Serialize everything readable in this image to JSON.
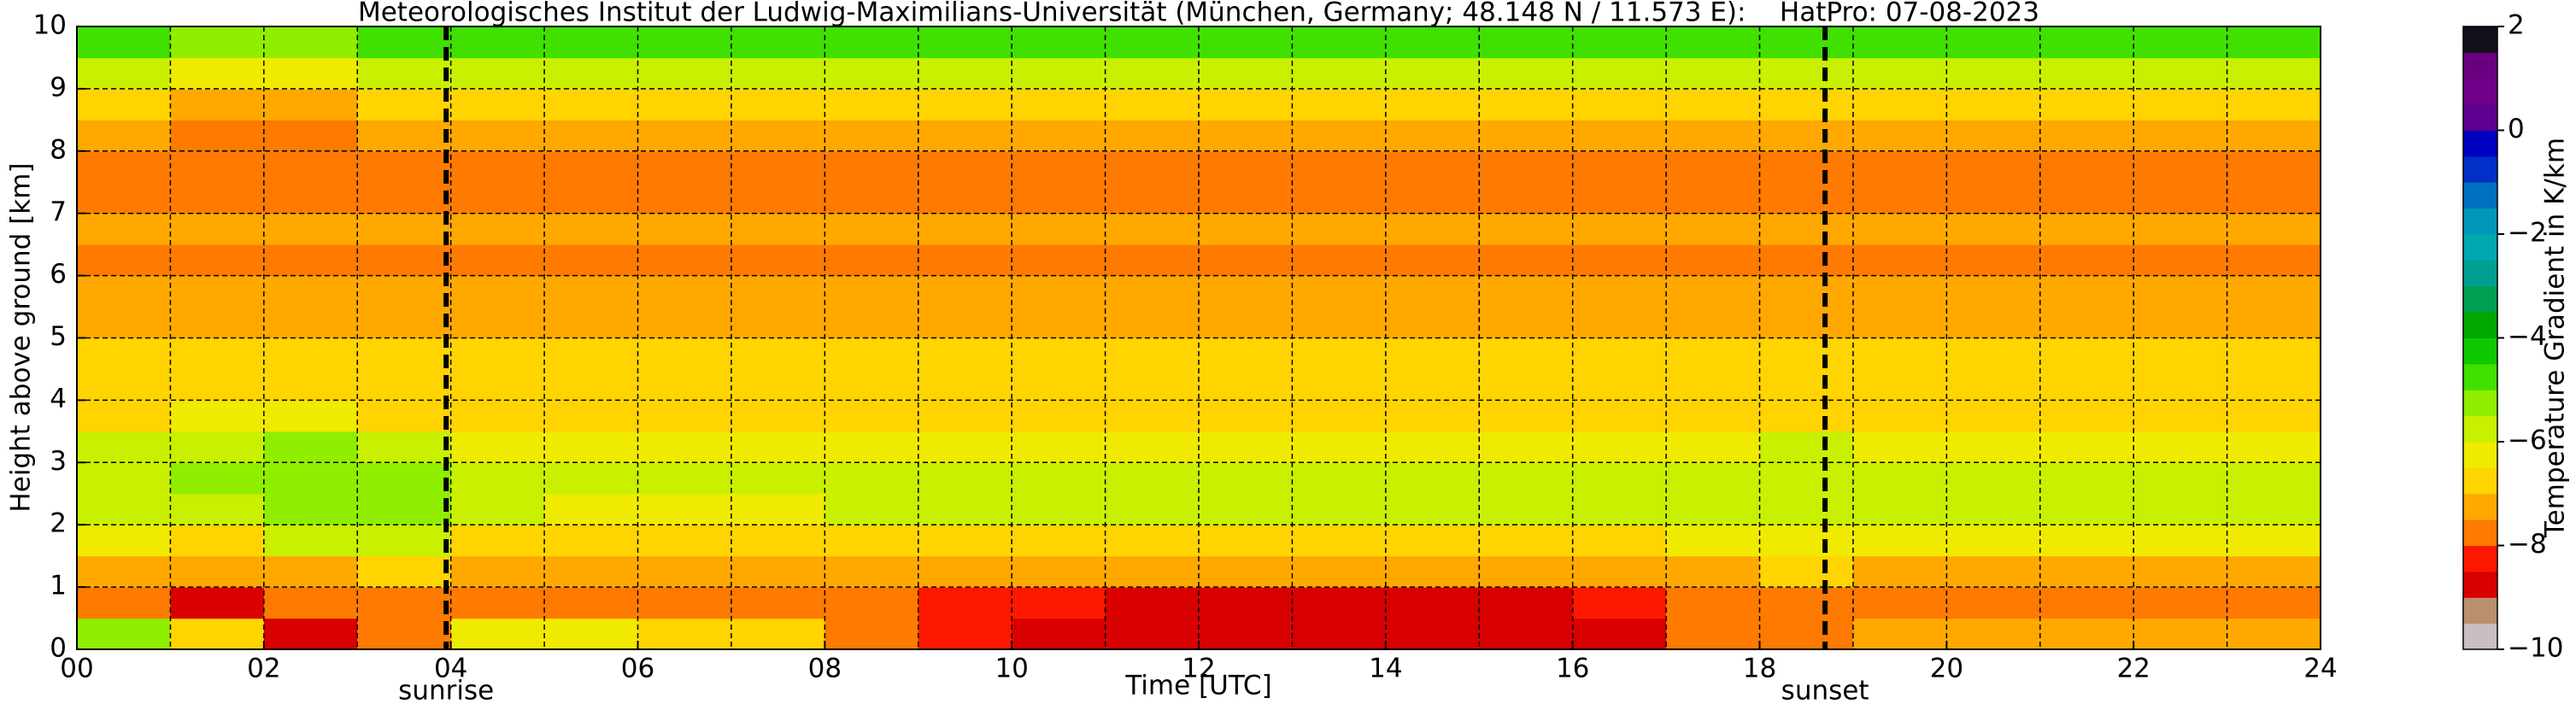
{
  "chart_data": {
    "type": "heatmap",
    "title": "Meteorologisches Institut der Ludwig-Maximilians-Universität (München, Germany; 48.148 N / 11.573 E):    HatPro: 07-08-2023",
    "xlabel": "Time [UTC]",
    "ylabel": "Height above ground [km]",
    "xlim": [
      0,
      24
    ],
    "ylim": [
      0,
      10
    ],
    "xticks": [
      {
        "value": 0,
        "label": "00"
      },
      {
        "value": 2,
        "label": "02"
      },
      {
        "value": 4,
        "label": "04"
      },
      {
        "value": 6,
        "label": "06"
      },
      {
        "value": 8,
        "label": "08"
      },
      10,
      12,
      14,
      16,
      18,
      20,
      22,
      24
    ],
    "xminorticks": [
      1,
      3,
      5,
      7,
      9,
      11,
      13,
      15,
      17,
      19,
      21,
      23
    ],
    "yticks": [
      0,
      1,
      2,
      3,
      4,
      5,
      6,
      7,
      8,
      9,
      10
    ],
    "grid": true,
    "xbins": [
      0,
      1,
      2,
      3,
      4,
      5,
      6,
      7,
      8,
      9,
      10,
      11,
      12,
      13,
      14,
      15,
      16,
      17,
      18,
      19,
      20,
      21,
      22,
      23,
      24
    ],
    "ybins": [
      0,
      0.5,
      1,
      1.5,
      2,
      2.5,
      3,
      3.5,
      4,
      4.5,
      5,
      5.5,
      6,
      6.5,
      7,
      7.5,
      8,
      8.5,
      9,
      9.5,
      10
    ],
    "z": [
      [
        -5.5,
        -7.0,
        -8.6,
        -7.6,
        -6.5,
        -6.5,
        -6.6,
        -7.0,
        -7.6,
        -8.2,
        -8.6,
        -8.7,
        -8.7,
        -8.8,
        -8.8,
        -8.7,
        -8.6,
        -7.8,
        -7.6,
        -7.4,
        -7.4,
        -7.4,
        -7.4,
        -7.4
      ],
      [
        -7.6,
        -8.6,
        -7.9,
        -7.6,
        -7.6,
        -7.6,
        -7.6,
        -7.6,
        -7.7,
        -8.1,
        -8.4,
        -8.6,
        -8.6,
        -8.7,
        -8.7,
        -8.6,
        -8.3,
        -7.7,
        -7.6,
        -7.6,
        -7.6,
        -7.6,
        -7.6,
        -7.6
      ],
      [
        -7.1,
        -7.4,
        -7.1,
        -7.0,
        -7.2,
        -7.2,
        -7.2,
        -7.2,
        -7.2,
        -7.2,
        -7.3,
        -7.4,
        -7.4,
        -7.4,
        -7.4,
        -7.4,
        -7.3,
        -7.1,
        -7.0,
        -7.1,
        -7.1,
        -7.1,
        -7.1,
        -7.1
      ],
      [
        -6.4,
        -6.6,
        -6.0,
        -6.0,
        -6.6,
        -6.7,
        -6.7,
        -6.7,
        -6.7,
        -6.7,
        -6.7,
        -6.7,
        -6.7,
        -6.7,
        -6.7,
        -6.7,
        -6.7,
        -6.5,
        -6.3,
        -6.5,
        -6.5,
        -6.5,
        -6.5,
        -6.5
      ],
      [
        -5.8,
        -5.6,
        -5.3,
        -5.3,
        -6.0,
        -6.1,
        -6.1,
        -6.1,
        -6.0,
        -6.0,
        -6.0,
        -6.0,
        -6.0,
        -6.0,
        -6.0,
        -6.0,
        -6.0,
        -5.8,
        -5.6,
        -5.8,
        -5.8,
        -5.8,
        -5.8,
        -5.8
      ],
      [
        -5.6,
        -5.4,
        -5.2,
        -5.4,
        -5.9,
        -6.0,
        -6.0,
        -6.0,
        -5.9,
        -5.8,
        -5.9,
        -5.9,
        -5.9,
        -5.9,
        -5.9,
        -5.9,
        -5.9,
        -5.7,
        -5.6,
        -5.7,
        -5.7,
        -5.7,
        -5.7,
        -5.7
      ],
      [
        -5.9,
        -5.7,
        -5.5,
        -5.8,
        -6.2,
        -6.3,
        -6.3,
        -6.3,
        -6.2,
        -6.2,
        -6.2,
        -6.2,
        -6.2,
        -6.2,
        -6.2,
        -6.2,
        -6.2,
        -6.1,
        -6.0,
        -6.1,
        -6.1,
        -6.1,
        -6.1,
        -6.1
      ],
      [
        -6.6,
        -6.3,
        -6.2,
        -6.6,
        -6.6,
        -6.6,
        -6.6,
        -6.6,
        -6.6,
        -6.6,
        -6.6,
        -6.6,
        -6.6,
        -6.6,
        -6.6,
        -6.6,
        -6.6,
        -6.6,
        -6.6,
        -6.6,
        -6.6,
        -6.6,
        -6.6,
        -6.6
      ],
      [
        -6.9,
        -6.9,
        -6.9,
        -6.9,
        -6.9,
        -6.9,
        -6.9,
        -6.9,
        -6.9,
        -6.9,
        -6.9,
        -6.9,
        -6.9,
        -6.9,
        -6.9,
        -6.9,
        -6.9,
        -6.9,
        -6.9,
        -6.9,
        -6.9,
        -6.9,
        -6.9,
        -6.9
      ],
      [
        -7.0,
        -7.0,
        -7.0,
        -7.0,
        -7.0,
        -7.0,
        -7.0,
        -7.0,
        -7.0,
        -7.0,
        -7.0,
        -7.0,
        -7.0,
        -7.0,
        -7.0,
        -7.0,
        -7.0,
        -7.0,
        -7.0,
        -7.0,
        -7.0,
        -7.0,
        -7.0,
        -7.0
      ],
      [
        -7.1,
        -7.1,
        -7.1,
        -7.1,
        -7.1,
        -7.1,
        -7.1,
        -7.1,
        -7.1,
        -7.1,
        -7.1,
        -7.1,
        -7.1,
        -7.1,
        -7.1,
        -7.1,
        -7.1,
        -7.1,
        -7.1,
        -7.1,
        -7.1,
        -7.1,
        -7.1,
        -7.1
      ],
      [
        -7.2,
        -7.2,
        -7.2,
        -7.2,
        -7.2,
        -7.2,
        -7.2,
        -7.2,
        -7.2,
        -7.2,
        -7.2,
        -7.2,
        -7.2,
        -7.2,
        -7.2,
        -7.2,
        -7.2,
        -7.2,
        -7.2,
        -7.2,
        -7.2,
        -7.2,
        -7.2,
        -7.2
      ],
      [
        -7.6,
        -7.6,
        -7.6,
        -7.6,
        -7.6,
        -7.6,
        -7.6,
        -7.6,
        -7.6,
        -7.6,
        -7.6,
        -7.6,
        -7.6,
        -7.6,
        -7.6,
        -7.6,
        -7.6,
        -7.6,
        -7.6,
        -7.6,
        -7.6,
        -7.6,
        -7.6,
        -7.6
      ],
      [
        -7.4,
        -7.4,
        -7.4,
        -7.4,
        -7.4,
        -7.4,
        -7.4,
        -7.4,
        -7.4,
        -7.4,
        -7.4,
        -7.4,
        -7.4,
        -7.4,
        -7.4,
        -7.4,
        -7.4,
        -7.4,
        -7.4,
        -7.4,
        -7.4,
        -7.4,
        -7.4,
        -7.4
      ],
      [
        -7.8,
        -7.8,
        -7.8,
        -7.8,
        -7.8,
        -7.8,
        -7.8,
        -7.8,
        -7.8,
        -7.8,
        -7.8,
        -7.8,
        -7.8,
        -7.8,
        -7.8,
        -7.8,
        -7.8,
        -7.8,
        -7.8,
        -7.8,
        -7.8,
        -7.8,
        -7.8,
        -7.8
      ],
      [
        -7.8,
        -7.8,
        -7.8,
        -7.8,
        -7.8,
        -7.8,
        -7.8,
        -7.8,
        -7.8,
        -7.8,
        -7.8,
        -7.8,
        -7.8,
        -7.8,
        -7.8,
        -7.8,
        -7.8,
        -7.8,
        -7.8,
        -7.8,
        -7.8,
        -7.8,
        -7.8,
        -7.8
      ],
      [
        -7.3,
        -7.6,
        -7.9,
        -7.4,
        -7.3,
        -7.3,
        -7.3,
        -7.3,
        -7.3,
        -7.3,
        -7.3,
        -7.3,
        -7.3,
        -7.3,
        -7.3,
        -7.3,
        -7.3,
        -7.3,
        -7.3,
        -7.3,
        -7.3,
        -7.3,
        -7.3,
        -7.3
      ],
      [
        -6.8,
        -7.1,
        -7.3,
        -6.9,
        -6.8,
        -6.8,
        -6.8,
        -6.8,
        -6.8,
        -6.8,
        -6.8,
        -6.8,
        -6.8,
        -6.8,
        -6.8,
        -6.8,
        -6.8,
        -6.8,
        -6.8,
        -6.8,
        -6.8,
        -6.8,
        -6.8,
        -6.8
      ],
      [
        -5.8,
        -6.3,
        -6.5,
        -6.0,
        -5.8,
        -5.8,
        -5.8,
        -5.8,
        -5.8,
        -5.8,
        -5.8,
        -5.8,
        -5.8,
        -5.8,
        -5.8,
        -5.8,
        -5.8,
        -5.8,
        -5.8,
        -5.8,
        -5.8,
        -5.8,
        -5.8,
        -5.8
      ],
      [
        -4.8,
        -5.4,
        -5.4,
        -4.8,
        -4.8,
        -4.8,
        -4.8,
        -4.8,
        -4.8,
        -4.8,
        -4.8,
        -4.8,
        -4.8,
        -4.8,
        -4.8,
        -4.8,
        -4.8,
        -4.8,
        -4.8,
        -4.8,
        -4.8,
        -4.8,
        -4.8,
        -4.8
      ]
    ],
    "colorbar": {
      "label": "Temperature Gradient in K/km",
      "zlim": [
        -10,
        2
      ],
      "zticks": [
        {
          "value": -10,
          "label": "−10"
        },
        {
          "value": -8,
          "label": "−8"
        },
        {
          "value": -6,
          "label": "−6"
        },
        {
          "value": -4,
          "label": "−4"
        },
        {
          "value": -2,
          "label": "−2"
        },
        0,
        2
      ],
      "levels": [
        -10,
        -9.5,
        -9,
        -8.5,
        -8,
        -7.5,
        -7,
        -6.5,
        -6,
        -5.5,
        -5,
        -4.5,
        -4,
        -3.5,
        -3,
        -2.5,
        -2,
        -1.5,
        -1,
        -0.5,
        0,
        0.5,
        1,
        1.5,
        2
      ],
      "colors": [
        "#c8c0c0",
        "#b89070",
        "#d80000",
        "#ff1800",
        "#ff7a00",
        "#ffa800",
        "#ffd400",
        "#f0ea00",
        "#c8f000",
        "#90ee00",
        "#40e000",
        "#10c800",
        "#00a800",
        "#00a050",
        "#00a090",
        "#00a8b0",
        "#0098b8",
        "#0070c0",
        "#0030c8",
        "#0000c0",
        "#600090",
        "#700088",
        "#6a0080",
        "#101018"
      ]
    },
    "annotations": [
      {
        "x": 3.95,
        "text": "sunrise"
      },
      {
        "x": 18.7,
        "text": "sunset"
      }
    ]
  }
}
